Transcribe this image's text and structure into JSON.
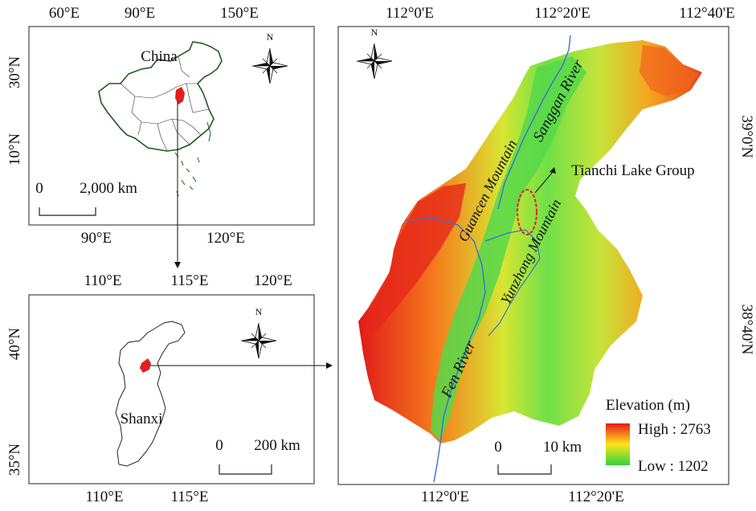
{
  "panel_china": {
    "top_ticks": [
      "60°E",
      "90°E",
      "150°E"
    ],
    "bottom_ticks": [
      "90°E",
      "120°E"
    ],
    "left_ticks": [
      "30°N",
      "10°N"
    ],
    "country_label": "China",
    "scale_start": "0",
    "scale_end": "2,000 km"
  },
  "panel_shanxi": {
    "top_ticks": [
      "110°E",
      "115°E",
      "120°E"
    ],
    "bottom_ticks": [
      "110°E",
      "115°E"
    ],
    "left_ticks": [
      "40°N",
      "35°N"
    ],
    "province_label": "Shanxi",
    "scale_start": "0",
    "scale_end": "200 km"
  },
  "panel_study": {
    "top_ticks": [
      "112°0'E",
      "112°20'E",
      "112°40'E"
    ],
    "bottom_ticks": [
      "112°0'E",
      "112°20'E"
    ],
    "right_ticks": [
      "39°0'N",
      "38°40'N"
    ],
    "labels": {
      "sanggan": "Sanggan River",
      "guancen": "Guancen Mountain",
      "tianchi": "Tianchi Lake Group",
      "yunzhong": "Yunzhong Mountain",
      "fen": "Fen River"
    },
    "scale_start": "0",
    "scale_end": "10 km",
    "legend": {
      "title": "Elevation (m)",
      "high": "High : 2763",
      "low": "Low : 1202"
    }
  },
  "north_arrow_letter": "N",
  "colors": {
    "high": "#e8281a",
    "mid": "#ffd21a",
    "low": "#3cd43c",
    "river": "#3b6fd8",
    "china_outline": "#1f5a1f",
    "highlight": "#e41e1e"
  },
  "icons": [
    "north-arrow-icon"
  ]
}
